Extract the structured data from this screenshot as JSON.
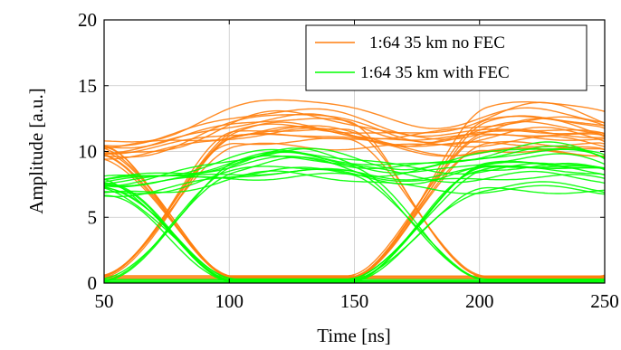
{
  "chart_data": {
    "type": "line",
    "title": "",
    "xlabel": "Time [ns]",
    "ylabel": "Amplitude [a.u.]",
    "xlim": [
      50,
      250
    ],
    "ylim": [
      0,
      20
    ],
    "x_ticks": [
      50,
      100,
      150,
      200,
      250
    ],
    "y_ticks": [
      0,
      5,
      10,
      15,
      20
    ],
    "grid": true,
    "legend_position": "top-right",
    "bit_period_ns": 100,
    "series": [
      {
        "name": "1:64 35 km no FEC",
        "color": "#ff7f0e",
        "low_level": 0.4,
        "high_level": 9.8,
        "eye_crossing_x": [
          75,
          175
        ],
        "eye_crossing_y": 2.3,
        "upper_bump_peak": 13.2,
        "upper_bump_centers": [
          125,
          225
        ]
      },
      {
        "name": "1:64 35 km with FEC",
        "color": "#00ff00",
        "low_level": 0.15,
        "high_level": 7.2,
        "eye_crossing_x": [
          75,
          175
        ],
        "eye_crossing_y": 2.2,
        "upper_bump_peak": 10.3,
        "upper_bump_centers": [
          125,
          225
        ]
      }
    ]
  }
}
